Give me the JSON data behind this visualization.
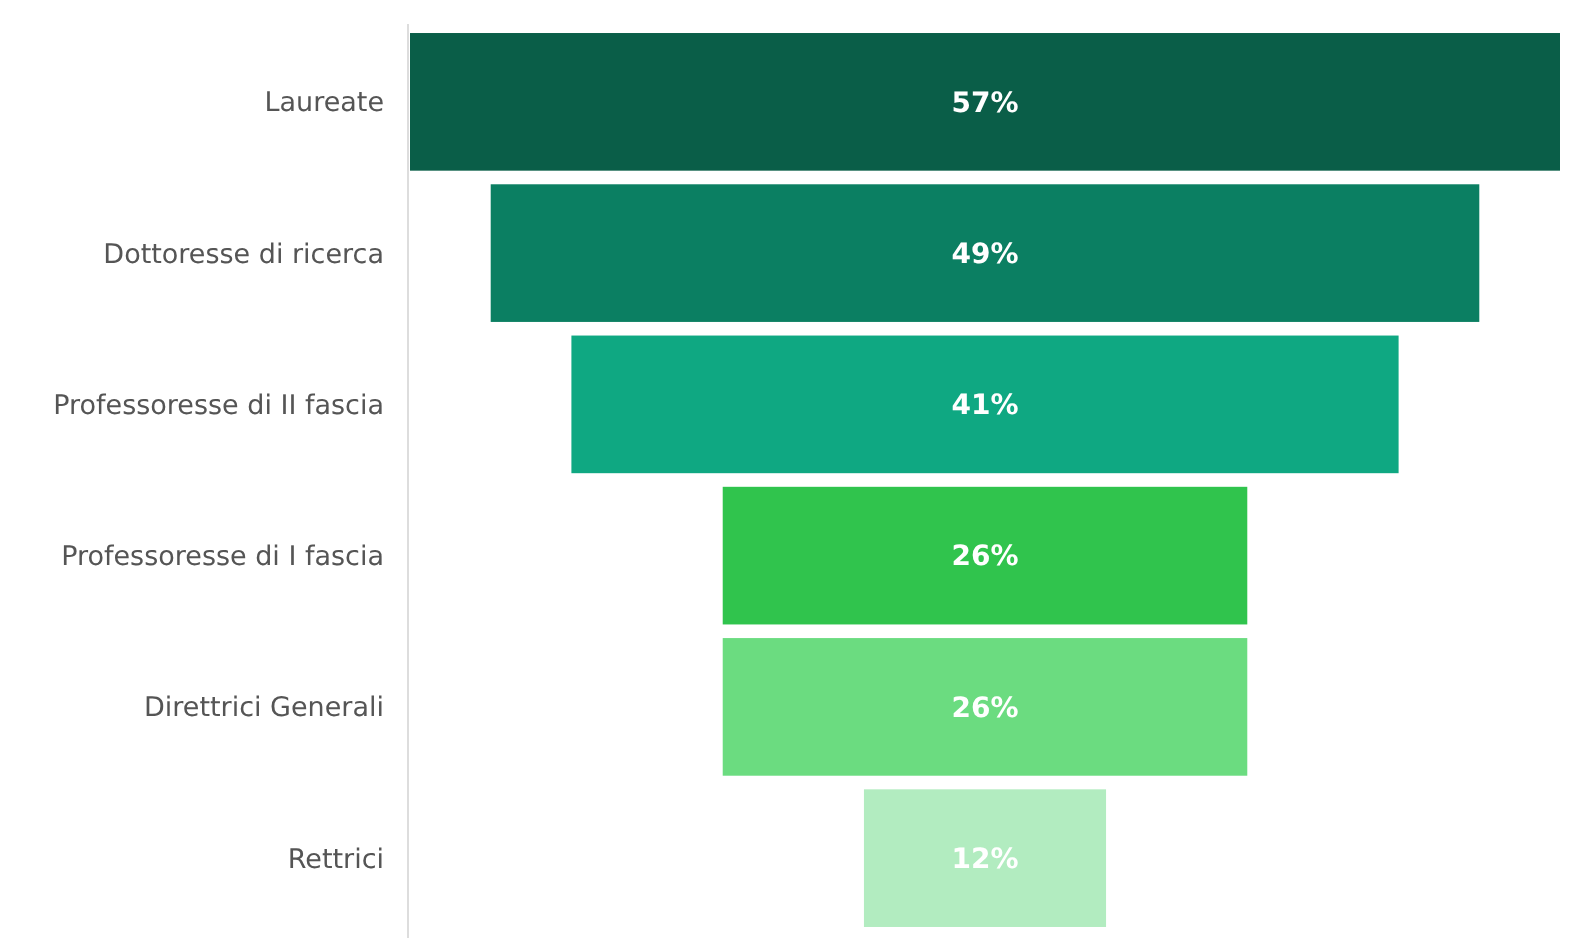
{
  "chart_data": {
    "type": "other",
    "categories": [
      "Laureate",
      "Dottoresse di ricerca",
      "Professoresse di II fascia",
      "Professoresse di I fascia",
      "Direttrici Generali",
      "Rettrici"
    ],
    "values": [
      57,
      49,
      41,
      26,
      26,
      12
    ],
    "value_labels": [
      "57%",
      "49%",
      "41%",
      "26%",
      "26%",
      "12%"
    ],
    "colors": [
      "#0a5e48",
      "#0b7f62",
      "#0fa882",
      "#30c44d",
      "#6bdc80",
      "#b2ecc0"
    ]
  }
}
